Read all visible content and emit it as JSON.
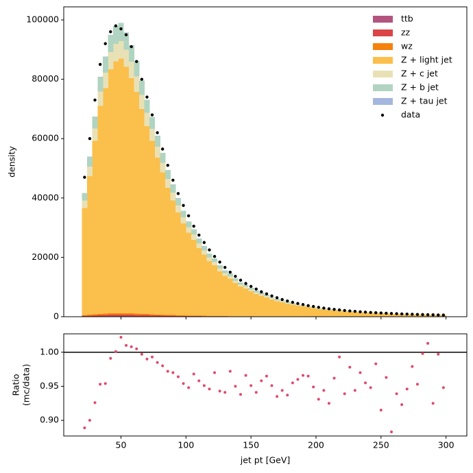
{
  "chart_data": [
    {
      "type": "stacked-histogram",
      "ylabel": "density",
      "bins": [
        20,
        24,
        28,
        32,
        36,
        40,
        44,
        48,
        52,
        56,
        60,
        64,
        68,
        72,
        76,
        80,
        84,
        88,
        92,
        96,
        100,
        104,
        108,
        112,
        116,
        120,
        124,
        128,
        132,
        136,
        140,
        144,
        148,
        152,
        156,
        160,
        164,
        168,
        172,
        176,
        180,
        184,
        188,
        192,
        196,
        200,
        204,
        208,
        212,
        216,
        220,
        224,
        228,
        232,
        236,
        240,
        244,
        248,
        252,
        256,
        260,
        264,
        268,
        272,
        276,
        280,
        284,
        288,
        292,
        296,
        300
      ],
      "xlim": [
        6,
        316
      ],
      "xticks": [
        50,
        100,
        150,
        200,
        250,
        300
      ],
      "ylim": [
        0,
        104400
      ],
      "yticks": [
        0,
        20000,
        40000,
        60000,
        80000,
        100000
      ],
      "legend": "upper right",
      "series": [
        {
          "name": "ttb",
          "color": "#b3547f",
          "values": [
            80,
            110,
            140,
            160,
            180,
            190,
            200,
            200,
            190,
            180,
            170,
            160,
            150,
            130,
            120,
            110,
            100,
            90,
            80,
            70,
            60,
            60,
            50,
            50,
            40,
            40,
            30,
            30,
            30,
            30,
            20,
            20,
            20,
            20,
            20,
            10,
            10,
            10,
            10,
            10,
            10,
            10,
            10,
            10,
            10,
            10,
            10,
            10,
            10,
            10,
            10,
            10,
            10,
            10,
            10,
            10,
            10,
            10,
            10,
            10,
            10,
            10,
            10,
            10,
            10,
            10,
            10,
            10,
            10,
            10
          ]
        },
        {
          "name": "zz",
          "color": "#db4545",
          "values": [
            210,
            270,
            340,
            400,
            440,
            480,
            490,
            500,
            480,
            460,
            430,
            400,
            370,
            340,
            310,
            280,
            250,
            220,
            200,
            180,
            160,
            150,
            130,
            120,
            110,
            100,
            90,
            80,
            70,
            60,
            60,
            50,
            50,
            40,
            40,
            40,
            30,
            30,
            30,
            20,
            20,
            20,
            20,
            20,
            20,
            10,
            10,
            10,
            10,
            10,
            10,
            10,
            10,
            10,
            10,
            10,
            10,
            10,
            10,
            10,
            10,
            10,
            10,
            10,
            10,
            10,
            10,
            10,
            10,
            10
          ]
        },
        {
          "name": "wz",
          "color": "#f5820d",
          "values": [
            210,
            270,
            340,
            400,
            440,
            480,
            490,
            500,
            480,
            460,
            430,
            400,
            370,
            340,
            310,
            280,
            250,
            220,
            200,
            180,
            160,
            150,
            130,
            120,
            110,
            100,
            90,
            80,
            70,
            60,
            60,
            50,
            50,
            40,
            40,
            40,
            30,
            30,
            30,
            20,
            20,
            20,
            20,
            20,
            20,
            10,
            10,
            10,
            10,
            10,
            10,
            10,
            10,
            10,
            10,
            10,
            10,
            10,
            10,
            10,
            10,
            10,
            10,
            10,
            10,
            10,
            10,
            10,
            10,
            10
          ]
        },
        {
          "name": "Z + light jet",
          "color": "#fbbf4b",
          "values": [
            36160,
            46710,
            58470,
            70070,
            75950,
            82260,
            84860,
            85720,
            83000,
            79320,
            74740,
            68990,
            63370,
            58400,
            52830,
            47900,
            42880,
            38600,
            34610,
            30950,
            27880,
            25530,
            22790,
            20570,
            18420,
            17030,
            15010,
            13510,
            12610,
            11180,
            9980,
            9360,
            8390,
            7570,
            6960,
            6430,
            5760,
            5170,
            4740,
            4300,
            4000,
            3690,
            3430,
            3130,
            2830,
            2530,
            2370,
            2150,
            2060,
            1950,
            1700,
            1650,
            1470,
            1400,
            1280,
            1190,
            1140,
            990,
            970,
            820,
            820,
            750,
            720,
            690,
            630,
            620,
            600,
            510,
            520,
            460
          ]
        },
        {
          "name": "Z + c jet",
          "color": "#e9e1b6",
          "values": [
            2510,
            3240,
            4060,
            4860,
            5270,
            5710,
            5890,
            5950,
            5760,
            5500,
            5180,
            4790,
            4400,
            4050,
            3660,
            3320,
            2970,
            2680,
            2400,
            2150,
            1930,
            1770,
            1580,
            1430,
            1280,
            1180,
            1040,
            940,
            870,
            780,
            690,
            650,
            580,
            530,
            480,
            450,
            400,
            360,
            330,
            300,
            280,
            260,
            240,
            220,
            200,
            180,
            160,
            150,
            140,
            140,
            120,
            110,
            100,
            100,
            90,
            80,
            80,
            70,
            70,
            60,
            60,
            50,
            50,
            50,
            40,
            40,
            40,
            40,
            40,
            30
          ]
        },
        {
          "name": "Z + b jet",
          "color": "#b0d4c1",
          "values": [
            2510,
            3240,
            4060,
            4860,
            5270,
            5710,
            5890,
            5950,
            5760,
            5500,
            5180,
            4790,
            4400,
            4050,
            3660,
            3320,
            2970,
            2680,
            2400,
            2150,
            1930,
            1770,
            1580,
            1430,
            1280,
            1180,
            1040,
            940,
            870,
            780,
            690,
            650,
            580,
            530,
            480,
            450,
            400,
            360,
            330,
            300,
            280,
            260,
            240,
            220,
            200,
            180,
            160,
            150,
            140,
            140,
            120,
            110,
            100,
            100,
            90,
            80,
            80,
            70,
            70,
            60,
            60,
            50,
            50,
            50,
            40,
            40,
            40,
            40,
            40,
            30
          ]
        },
        {
          "name": "Z + tau jet",
          "color": "#a5b7de",
          "values": [
            40,
            50,
            70,
            80,
            90,
            100,
            100,
            100,
            100,
            90,
            80,
            80,
            70,
            70,
            60,
            50,
            50,
            40,
            40,
            40,
            30,
            30,
            30,
            20,
            20,
            20,
            20,
            20,
            20,
            10,
            10,
            10,
            10,
            10,
            10,
            10,
            10,
            10,
            10,
            10,
            10,
            10,
            10,
            10,
            10,
            10,
            10,
            10,
            10,
            10,
            10,
            10,
            10,
            10,
            10,
            10,
            10,
            10,
            10,
            10,
            10,
            10,
            10,
            10,
            10,
            10,
            10,
            10,
            10,
            10
          ]
        }
      ],
      "data_points": {
        "name": "data",
        "color": "#000000",
        "values": [
          47000,
          60000,
          73000,
          85000,
          92000,
          96000,
          98000,
          97000,
          95000,
          91000,
          86000,
          80000,
          74000,
          68000,
          62000,
          56500,
          51000,
          46000,
          41500,
          37500,
          34000,
          30500,
          27500,
          25000,
          22500,
          20300,
          18400,
          16600,
          15000,
          13600,
          12300,
          11200,
          10200,
          9300,
          8400,
          7700,
          7000,
          6400,
          5800,
          5300,
          4850,
          4450,
          4100,
          3750,
          3450,
          3150,
          2900,
          2680,
          2470,
          2280,
          2100,
          1950,
          1800,
          1670,
          1550,
          1440,
          1340,
          1250,
          1160,
          1080,
          1010,
          940,
          880,
          820,
          770,
          720,
          680,
          640,
          600,
          560
        ]
      }
    },
    {
      "type": "scatter",
      "xlabel": "jet pt [GeV]",
      "ylabel": [
        "Ratio",
        "(mc/data)"
      ],
      "xlim": [
        6,
        316
      ],
      "xticks": [
        50,
        100,
        150,
        200,
        250,
        300
      ],
      "ylim": [
        0.877,
        1.027
      ],
      "yticks": [
        {
          "value": 0.9,
          "label": "0.90"
        },
        {
          "value": 0.95,
          "label": "0.95"
        },
        {
          "value": 1,
          "label": "1.00"
        }
      ],
      "reference_line": 1,
      "color": "#e0486c",
      "x": [
        22,
        26,
        30,
        34,
        38,
        42,
        46,
        50,
        54,
        58,
        62,
        66,
        70,
        74,
        78,
        82,
        86,
        90,
        94,
        98,
        102,
        106,
        110,
        114,
        118,
        122,
        126,
        130,
        134,
        138,
        142,
        146,
        150,
        154,
        158,
        162,
        166,
        170,
        174,
        178,
        182,
        186,
        190,
        194,
        198,
        202,
        206,
        210,
        214,
        218,
        222,
        226,
        230,
        234,
        238,
        242,
        246,
        250,
        254,
        258,
        262,
        266,
        270,
        274,
        278,
        282,
        286,
        290,
        294,
        298
      ],
      "values": [
        0.889,
        0.9,
        0.926,
        0.953,
        0.954,
        0.991,
        1.001,
        1.022,
        1.01,
        1.008,
        1.005,
        0.997,
        0.99,
        0.993,
        0.985,
        0.98,
        0.972,
        0.97,
        0.964,
        0.954,
        0.948,
        0.968,
        0.958,
        0.951,
        0.946,
        0.97,
        0.943,
        0.941,
        0.972,
        0.95,
        0.938,
        0.966,
        0.951,
        0.941,
        0.958,
        0.965,
        0.951,
        0.935,
        0.944,
        0.937,
        0.955,
        0.96,
        0.966,
        0.965,
        0.949,
        0.931,
        0.944,
        0.925,
        0.962,
        0.993,
        0.939,
        0.978,
        0.944,
        0.97,
        0.955,
        0.948,
        0.983,
        0.915,
        0.963,
        0.883,
        0.939,
        0.923,
        0.946,
        0.979,
        0.953,
        0.998,
        1.013,
        0.925,
        0.997,
        0.948
      ]
    }
  ]
}
